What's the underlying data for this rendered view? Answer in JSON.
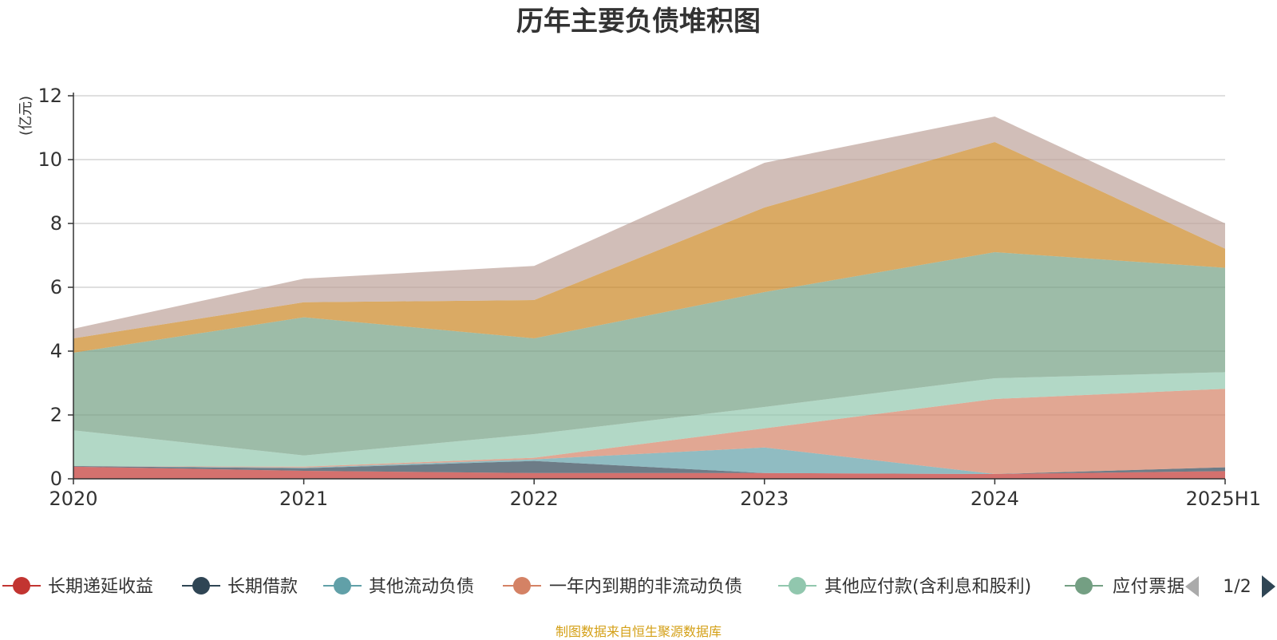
{
  "chart_data": {
    "type": "area",
    "stacked": true,
    "title": "历年主要负债堆积图",
    "ylabel": "(亿元)",
    "ylim": [
      0,
      12
    ],
    "yticks": [
      0,
      2,
      4,
      6,
      8,
      10,
      12
    ],
    "grid": true,
    "categories": [
      "2020",
      "2021",
      "2022",
      "2023",
      "2024",
      "2025H1"
    ],
    "series": [
      {
        "name": "长期递延收益",
        "color": "#c23531",
        "values": [
          0.38,
          0.25,
          0.18,
          0.18,
          0.15,
          0.24
        ]
      },
      {
        "name": "长期借款",
        "color": "#2f4554",
        "values": [
          0.02,
          0.08,
          0.38,
          0.0,
          0.0,
          0.12
        ]
      },
      {
        "name": "其他流动负债",
        "color": "#61a0a8",
        "values": [
          0.0,
          0.02,
          0.05,
          0.8,
          0.0,
          0.0
        ]
      },
      {
        "name": "一年内到期的非流动负债",
        "color": "#d48265",
        "values": [
          0.0,
          0.03,
          0.05,
          0.6,
          2.35,
          2.46
        ]
      },
      {
        "name": "其他应付款(含利息和股利)",
        "color": "#91c7ae",
        "values": [
          1.12,
          0.35,
          0.74,
          0.67,
          0.65,
          0.52
        ]
      },
      {
        "name": "应付票据",
        "color": "#749f83",
        "values": [
          2.43,
          4.33,
          3.0,
          3.6,
          3.95,
          3.27
        ]
      },
      {
        "name": "",
        "color": "#ca8622",
        "values": [
          0.45,
          0.47,
          1.2,
          2.65,
          3.45,
          0.6
        ]
      },
      {
        "name": "",
        "color": "#bda29a",
        "values": [
          0.3,
          0.74,
          1.07,
          1.4,
          0.8,
          0.79
        ]
      }
    ],
    "legend": {
      "placement": "bottom",
      "visible_items": [
        "长期递延收益",
        "长期借款",
        "其他流动负债",
        "一年内到期的非流动负债",
        "其他应付款(含利息和股利)",
        "应付票据"
      ],
      "page": "1/2"
    }
  },
  "source_text": "制图数据来自恒生聚源数据库",
  "colors": {
    "title": "#333333",
    "ylabel": "#e03030",
    "grid": "#cccccc",
    "axis": "#333333",
    "source": "#d4a017",
    "pager_inactive": "#aaaaaa",
    "pager_active": "#2f4554"
  }
}
